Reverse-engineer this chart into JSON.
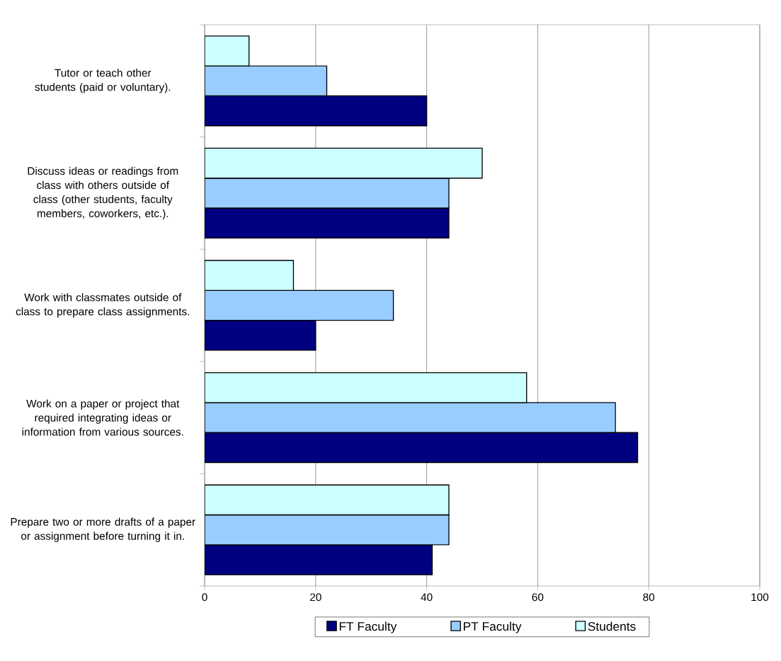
{
  "chart_data": {
    "type": "bar",
    "orientation": "horizontal",
    "categories": [
      "Tutor or teach other students (paid or voluntary).",
      "Discuss ideas or readings from class with others outside of class (other students, faculty members, coworkers, etc.).",
      "Work with classmates outside of class to prepare class assignments.",
      "Work on a paper or project that required integrating ideas or information from various sources.",
      "Prepare two or more drafts of a paper or assignment before turning it in."
    ],
    "series": [
      {
        "name": "FT Faculty",
        "color": "#000080",
        "values": [
          40,
          44,
          20,
          78,
          41
        ]
      },
      {
        "name": "PT Faculty",
        "color": "#99ccff",
        "values": [
          22,
          44,
          34,
          74,
          44
        ]
      },
      {
        "name": "Students",
        "color": "#ccffff",
        "values": [
          8,
          50,
          16,
          58,
          44
        ]
      }
    ],
    "xlim": [
      0,
      100
    ],
    "xticks": [
      0,
      20,
      40,
      60,
      80,
      100
    ],
    "grid": "x",
    "legend": "bottom"
  }
}
